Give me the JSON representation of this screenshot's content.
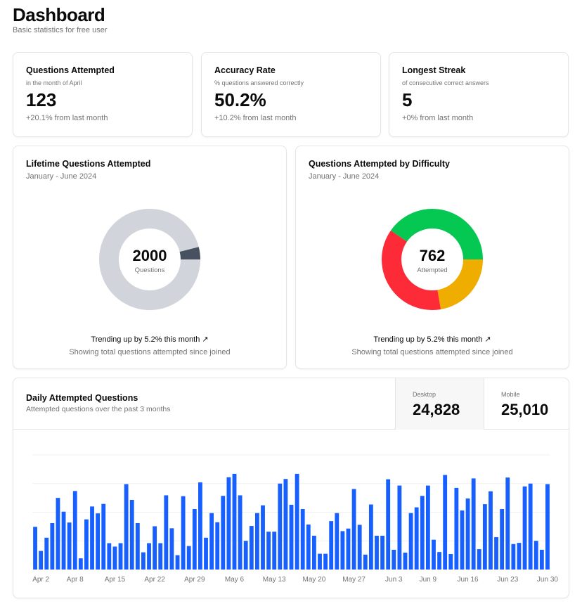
{
  "header": {
    "title": "Dashboard",
    "subtitle": "Basic statistics for free user"
  },
  "stats": [
    {
      "title": "Questions Attempted",
      "desc": "in the month of April",
      "value": "123",
      "footer": "+20.1% from last month"
    },
    {
      "title": "Accuracy Rate",
      "desc": "% questions answered correctly",
      "value": "50.2%",
      "footer": "+10.2% from last month"
    },
    {
      "title": "Longest Streak",
      "desc": "of consecutive correct answers",
      "value": "5",
      "footer": "+0% from last month"
    }
  ],
  "lifetime": {
    "title": "Lifetime Questions Attempted",
    "range": "January - June 2024",
    "center_value": "2000",
    "center_label": "Questions",
    "trend": "Trending up by 5.2% this month",
    "note": "Showing total questions attempted since joined",
    "trend_icon": "trending-up-icon"
  },
  "difficulty": {
    "title": "Questions Attempted by Difficulty",
    "range": "January - June 2024",
    "center_value": "762",
    "center_label": "Attempted",
    "trend": "Trending up by 5.2% this month",
    "note": "Showing total questions attempted since joined",
    "trend_icon": "trending-up-icon"
  },
  "daily": {
    "title": "Daily Attempted Questions",
    "desc": "Attempted questions over the past 3 months",
    "desktop_label": "Desktop",
    "desktop_value": "24,828",
    "mobile_label": "Mobile",
    "mobile_value": "25,010"
  },
  "chart_data": [
    {
      "type": "pie",
      "name": "lifetime",
      "slices": [
        {
          "value": 80,
          "color": "#475160"
        },
        {
          "value": 1920,
          "color": "#d1d5db"
        }
      ]
    },
    {
      "type": "pie",
      "name": "difficulty",
      "slices": [
        {
          "value": 307,
          "color": "#05c853"
        },
        {
          "value": 170,
          "color": "#efad00"
        },
        {
          "value": 285,
          "color": "#fd2a37"
        }
      ]
    },
    {
      "type": "bar",
      "name": "daily",
      "color": "#1760ff",
      "ylim": [
        0,
        400
      ],
      "grid": true,
      "tick_labels": [
        "Apr 2",
        "Apr 8",
        "Apr 15",
        "Apr 22",
        "Apr 29",
        "May 6",
        "May 13",
        "May 20",
        "May 27",
        "Jun 3",
        "Jun 9",
        "Jun 16",
        "Jun 23",
        "Jun 30"
      ],
      "tick_index": [
        1,
        7,
        14,
        21,
        28,
        35,
        42,
        49,
        56,
        63,
        69,
        76,
        83,
        90
      ],
      "values": [
        149,
        65,
        111,
        162,
        250,
        202,
        164,
        274,
        39,
        175,
        220,
        196,
        229,
        92,
        80,
        92,
        298,
        243,
        162,
        60,
        92,
        151,
        92,
        259,
        144,
        50,
        256,
        82,
        211,
        304,
        111,
        197,
        165,
        257,
        322,
        334,
        259,
        100,
        152,
        197,
        224,
        132,
        132,
        300,
        316,
        226,
        334,
        211,
        157,
        118,
        55,
        55,
        169,
        197,
        134,
        143,
        281,
        156,
        52,
        227,
        118,
        118,
        315,
        69,
        293,
        59,
        197,
        217,
        257,
        293,
        104,
        61,
        330,
        54,
        285,
        206,
        248,
        318,
        71,
        228,
        273,
        113,
        211,
        321,
        89,
        93,
        290,
        300,
        100,
        69,
        298
      ]
    }
  ]
}
